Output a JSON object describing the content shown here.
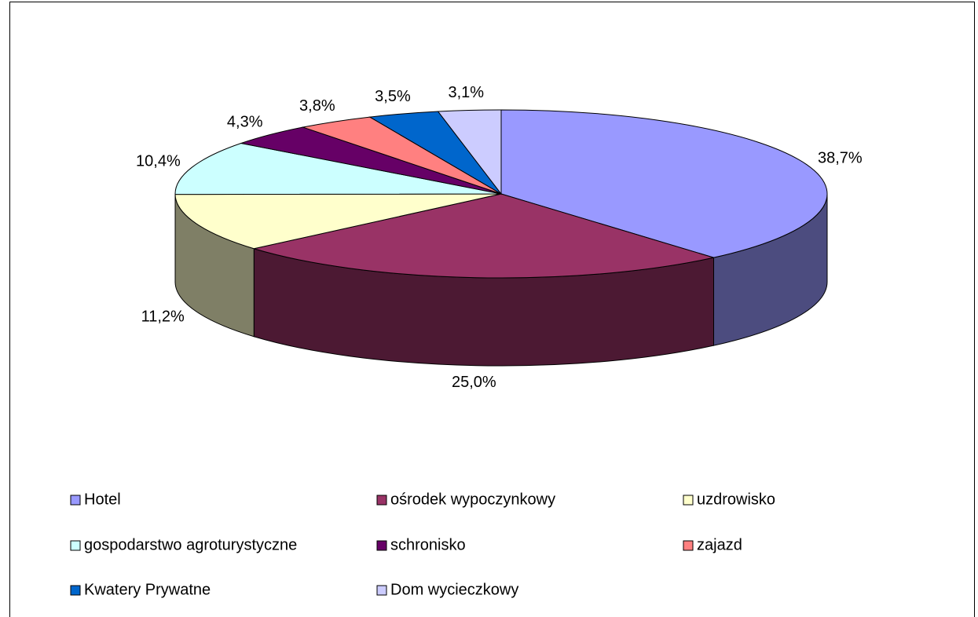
{
  "chart_data": {
    "type": "pie3d",
    "categories": [
      "Hotel",
      "ośrodek wypoczynkowy",
      "uzdrowisko",
      "gospodarstwo agroturystyczne",
      "schronisko",
      "zajazd",
      "Kwatery Prywatne",
      "Dom wycieczkowy"
    ],
    "values": [
      38.7,
      25.0,
      11.2,
      10.4,
      4.3,
      3.8,
      3.5,
      3.1
    ],
    "value_labels": [
      "38,7%",
      "25,0%",
      "11,2%",
      "10,4%",
      "4,3%",
      "3,8%",
      "3,5%",
      "3,1%"
    ],
    "colors": [
      "#9999ff",
      "#993366",
      "#ffffcc",
      "#ccffff",
      "#660066",
      "#ff8080",
      "#0066cc",
      "#ccccff"
    ],
    "legend": "bottom"
  }
}
